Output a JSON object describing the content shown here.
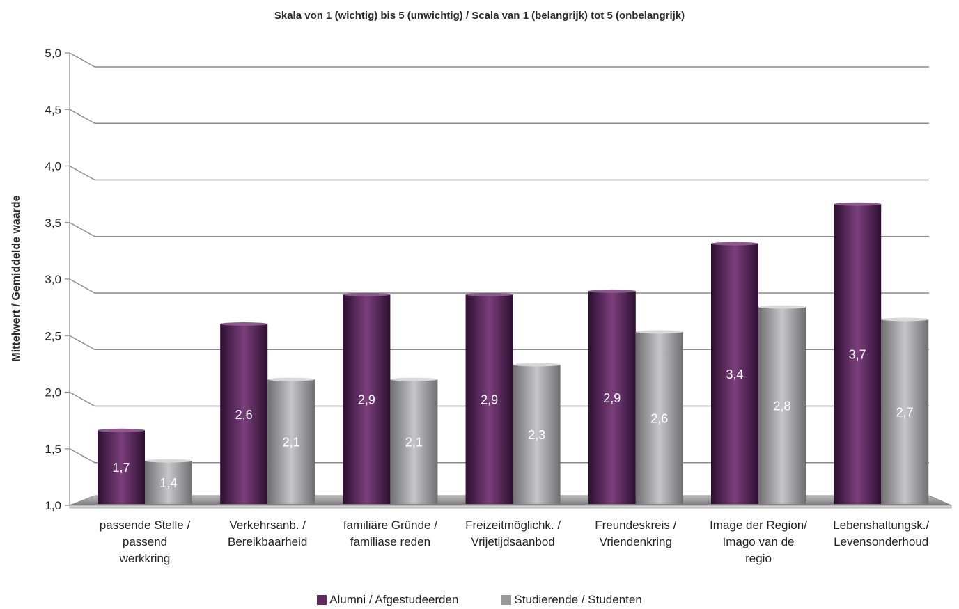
{
  "chart_data": {
    "type": "bar",
    "title": "Skala von 1 (wichtig) bis 5 (unwichtig) / Scala van 1 (belangrijk) tot 5 (onbelangrijk)",
    "ylabel": "Mittelwert / Gemiddelde waarde",
    "xlabel": "",
    "ylim": [
      1.0,
      5.0
    ],
    "yticks": [
      "1,0",
      "1,5",
      "2,0",
      "2,5",
      "3,0",
      "3,5",
      "4,0",
      "4,5",
      "5,0"
    ],
    "categories": [
      [
        "passende Stelle /",
        "passend",
        "werkkring"
      ],
      [
        "Verkehrsanb. /",
        "Bereikbaarheid"
      ],
      [
        "familiäre Gründe /",
        "familiase reden"
      ],
      [
        "Freizeitmöglichk. /",
        "Vrijetijdsaanbod"
      ],
      [
        "Freundeskreis /",
        "Vriendenkring"
      ],
      [
        "Image der Region/",
        "Imago van de",
        "regio"
      ],
      [
        "Lebenshaltungsk./",
        "Levensonderhoud"
      ]
    ],
    "series": [
      {
        "name": "Alumni / Afgestudeerden",
        "color": "#5e2a61",
        "values": [
          1.7,
          2.64,
          2.9,
          2.9,
          2.93,
          3.35,
          3.7
        ],
        "labels": [
          "1,7",
          "2,6",
          "2,9",
          "2,9",
          "2,9",
          "3,4",
          "3,7"
        ]
      },
      {
        "name": "Studierende / Studenten",
        "color": "#9a9a9c",
        "values": [
          1.43,
          2.15,
          2.15,
          2.28,
          2.57,
          2.79,
          2.68
        ],
        "labels": [
          "1,4",
          "2,1",
          "2,1",
          "2,3",
          "2,6",
          "2,8",
          "2,7"
        ]
      }
    ],
    "grid": true,
    "legend_position": "bottom"
  }
}
